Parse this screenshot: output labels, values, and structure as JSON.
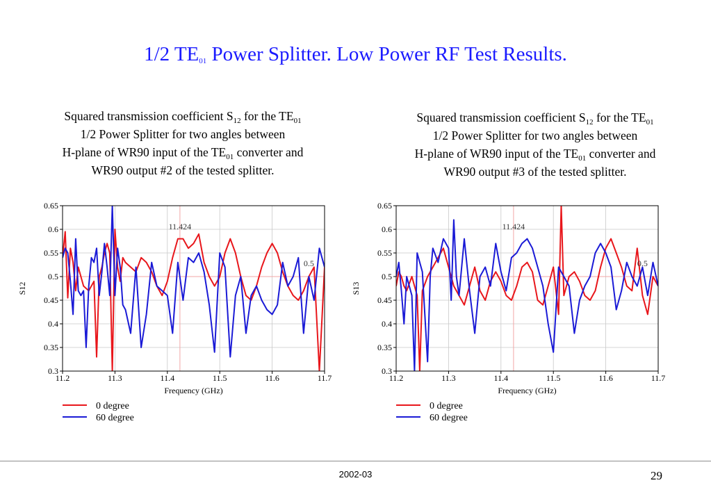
{
  "slide": {
    "title_main": "1/2 TE",
    "title_sub": "01",
    "title_rest": " Power Splitter.  Low Power RF Test Results.",
    "footer_date": "2002-03",
    "page_number": "29"
  },
  "captions": [
    {
      "l1a": "Squared transmission coefficient S",
      "l1s1": "12",
      "l1b": " for the TE",
      "l1s2": "01",
      "l2": "1/2  Power  Splitter  for  two  angles  between",
      "l3a": "H-plane of WR90 input of the TE",
      "l3s": "01",
      "l3b": " converter and",
      "l4": "WR90 output #2 of the tested splitter."
    },
    {
      "l1a": "Squared transmission coefficient S",
      "l1s1": "12",
      "l1b": " for the TE",
      "l1s2": "01",
      "l2": "1/2  Power  Splitter  for  two  angles  between",
      "l3a": "H-plane of WR90 input of the TE",
      "l3s": "01",
      "l3b": " converter and",
      "l4": "WR90 output #3 of the tested splitter."
    }
  ],
  "colors": {
    "red": "#e8161b",
    "blue": "#1a1ad6",
    "grid": "#c8c8c8",
    "marker": "#f2a6a6",
    "title": "#1a1aff"
  },
  "chart_data": [
    {
      "type": "line",
      "xlabel": "Frequency (GHz)",
      "ylabel": "S12",
      "xlim": [
        11.2,
        11.7
      ],
      "ylim": [
        0.3,
        0.65
      ],
      "x_ticks": [
        "11.2",
        "11.3",
        "11.4",
        "11.5",
        "11.6",
        "11.7"
      ],
      "y_ticks": [
        "0.65",
        "0.6",
        "0.55",
        "0.5",
        "0.45",
        "0.4",
        "0.35",
        "0.3"
      ],
      "annotations": [
        {
          "text": "11.424",
          "x": 11.424,
          "y": 0.6
        },
        {
          "text": "0.5",
          "x": 11.67,
          "y": 0.522
        }
      ],
      "reference_lines": {
        "x": 11.424,
        "y": 0.5
      },
      "series": [
        {
          "name": "0 degree",
          "color": "red",
          "x": [
            11.2,
            11.205,
            11.21,
            11.215,
            11.22,
            11.225,
            11.23,
            11.24,
            11.25,
            11.26,
            11.265,
            11.27,
            11.275,
            11.28,
            11.285,
            11.29,
            11.295,
            11.3,
            11.305,
            11.31,
            11.315,
            11.32,
            11.33,
            11.34,
            11.35,
            11.36,
            11.37,
            11.38,
            11.39,
            11.4,
            11.41,
            11.42,
            11.43,
            11.44,
            11.45,
            11.46,
            11.47,
            11.48,
            11.49,
            11.5,
            11.51,
            11.52,
            11.53,
            11.54,
            11.55,
            11.56,
            11.57,
            11.58,
            11.59,
            11.6,
            11.61,
            11.62,
            11.63,
            11.64,
            11.65,
            11.66,
            11.67,
            11.68,
            11.69,
            11.7
          ],
          "y": [
            0.54,
            0.595,
            0.455,
            0.56,
            0.53,
            0.47,
            0.52,
            0.48,
            0.47,
            0.49,
            0.33,
            0.5,
            0.52,
            0.55,
            0.57,
            0.55,
            0.3,
            0.6,
            0.52,
            0.49,
            0.54,
            0.53,
            0.52,
            0.51,
            0.54,
            0.53,
            0.51,
            0.48,
            0.46,
            0.49,
            0.54,
            0.58,
            0.58,
            0.56,
            0.57,
            0.59,
            0.53,
            0.5,
            0.48,
            0.5,
            0.55,
            0.58,
            0.55,
            0.5,
            0.46,
            0.45,
            0.48,
            0.52,
            0.55,
            0.57,
            0.55,
            0.51,
            0.48,
            0.46,
            0.45,
            0.47,
            0.5,
            0.52,
            0.3,
            0.52
          ]
        },
        {
          "name": "60 degree",
          "color": "blue",
          "x": [
            11.2,
            11.205,
            11.21,
            11.215,
            11.22,
            11.225,
            11.23,
            11.235,
            11.24,
            11.245,
            11.25,
            11.255,
            11.26,
            11.265,
            11.27,
            11.275,
            11.28,
            11.285,
            11.29,
            11.295,
            11.3,
            11.305,
            11.31,
            11.315,
            11.32,
            11.33,
            11.34,
            11.35,
            11.36,
            11.37,
            11.38,
            11.39,
            11.4,
            11.41,
            11.42,
            11.43,
            11.44,
            11.45,
            11.46,
            11.47,
            11.48,
            11.49,
            11.5,
            11.51,
            11.52,
            11.53,
            11.54,
            11.55,
            11.56,
            11.57,
            11.58,
            11.59,
            11.6,
            11.61,
            11.62,
            11.63,
            11.64,
            11.65,
            11.66,
            11.67,
            11.68,
            11.69,
            11.7
          ],
          "y": [
            0.54,
            0.56,
            0.55,
            0.49,
            0.42,
            0.58,
            0.47,
            0.46,
            0.47,
            0.35,
            0.48,
            0.54,
            0.53,
            0.56,
            0.46,
            0.51,
            0.57,
            0.52,
            0.46,
            0.65,
            0.46,
            0.56,
            0.52,
            0.44,
            0.43,
            0.38,
            0.52,
            0.35,
            0.42,
            0.53,
            0.48,
            0.47,
            0.46,
            0.38,
            0.53,
            0.45,
            0.54,
            0.53,
            0.55,
            0.51,
            0.44,
            0.34,
            0.55,
            0.52,
            0.33,
            0.46,
            0.5,
            0.38,
            0.46,
            0.48,
            0.45,
            0.43,
            0.42,
            0.44,
            0.53,
            0.48,
            0.5,
            0.54,
            0.38,
            0.5,
            0.45,
            0.56,
            0.52
          ]
        }
      ]
    },
    {
      "type": "line",
      "xlabel": "Frequency (GHz)",
      "ylabel": "S13",
      "xlim": [
        11.2,
        11.7
      ],
      "ylim": [
        0.3,
        0.65
      ],
      "x_ticks": [
        "11.2",
        "11.3",
        "11.4",
        "11.5",
        "11.6",
        "11.7"
      ],
      "y_ticks": [
        "0.65",
        "0.6",
        "0.55",
        "0.5",
        "0.45",
        "0.4",
        "0.35",
        "0.3"
      ],
      "annotations": [
        {
          "text": "11.424",
          "x": 11.424,
          "y": 0.6
        },
        {
          "text": "0.5",
          "x": 11.67,
          "y": 0.522
        }
      ],
      "reference_lines": {
        "x": 11.424,
        "y": 0.5
      },
      "series": [
        {
          "name": "0 degree",
          "color": "red",
          "x": [
            11.2,
            11.205,
            11.21,
            11.215,
            11.22,
            11.23,
            11.24,
            11.245,
            11.25,
            11.26,
            11.27,
            11.28,
            11.29,
            11.3,
            11.31,
            11.32,
            11.33,
            11.34,
            11.35,
            11.36,
            11.37,
            11.38,
            11.39,
            11.4,
            11.41,
            11.42,
            11.43,
            11.44,
            11.45,
            11.46,
            11.47,
            11.48,
            11.49,
            11.5,
            11.51,
            11.515,
            11.52,
            11.53,
            11.54,
            11.55,
            11.56,
            11.57,
            11.58,
            11.59,
            11.6,
            11.61,
            11.62,
            11.63,
            11.64,
            11.65,
            11.66,
            11.67,
            11.68,
            11.69,
            11.7
          ],
          "y": [
            0.48,
            0.51,
            0.5,
            0.48,
            0.47,
            0.5,
            0.46,
            0.3,
            0.47,
            0.5,
            0.52,
            0.54,
            0.56,
            0.52,
            0.48,
            0.46,
            0.44,
            0.48,
            0.52,
            0.47,
            0.45,
            0.49,
            0.51,
            0.49,
            0.46,
            0.45,
            0.48,
            0.52,
            0.53,
            0.51,
            0.45,
            0.44,
            0.48,
            0.52,
            0.42,
            0.65,
            0.46,
            0.5,
            0.51,
            0.49,
            0.46,
            0.45,
            0.47,
            0.52,
            0.56,
            0.58,
            0.55,
            0.52,
            0.48,
            0.47,
            0.56,
            0.46,
            0.42,
            0.5,
            0.48
          ]
        },
        {
          "name": "60 degree",
          "color": "blue",
          "x": [
            11.2,
            11.205,
            11.21,
            11.215,
            11.22,
            11.23,
            11.235,
            11.24,
            11.25,
            11.26,
            11.265,
            11.27,
            11.28,
            11.29,
            11.3,
            11.305,
            11.31,
            11.315,
            11.32,
            11.33,
            11.34,
            11.35,
            11.36,
            11.37,
            11.38,
            11.39,
            11.4,
            11.41,
            11.42,
            11.43,
            11.44,
            11.45,
            11.46,
            11.47,
            11.48,
            11.49,
            11.5,
            11.51,
            11.52,
            11.53,
            11.54,
            11.55,
            11.56,
            11.57,
            11.58,
            11.59,
            11.6,
            11.61,
            11.62,
            11.63,
            11.64,
            11.65,
            11.66,
            11.67,
            11.68,
            11.69,
            11.7
          ],
          "y": [
            0.5,
            0.53,
            0.47,
            0.4,
            0.5,
            0.46,
            0.3,
            0.55,
            0.51,
            0.32,
            0.5,
            0.56,
            0.53,
            0.58,
            0.56,
            0.45,
            0.62,
            0.5,
            0.46,
            0.58,
            0.47,
            0.38,
            0.5,
            0.52,
            0.48,
            0.57,
            0.51,
            0.47,
            0.54,
            0.55,
            0.57,
            0.58,
            0.56,
            0.52,
            0.48,
            0.4,
            0.34,
            0.52,
            0.5,
            0.48,
            0.38,
            0.45,
            0.48,
            0.5,
            0.55,
            0.57,
            0.55,
            0.52,
            0.43,
            0.47,
            0.53,
            0.5,
            0.48,
            0.52,
            0.46,
            0.53,
            0.48
          ]
        }
      ]
    }
  ]
}
